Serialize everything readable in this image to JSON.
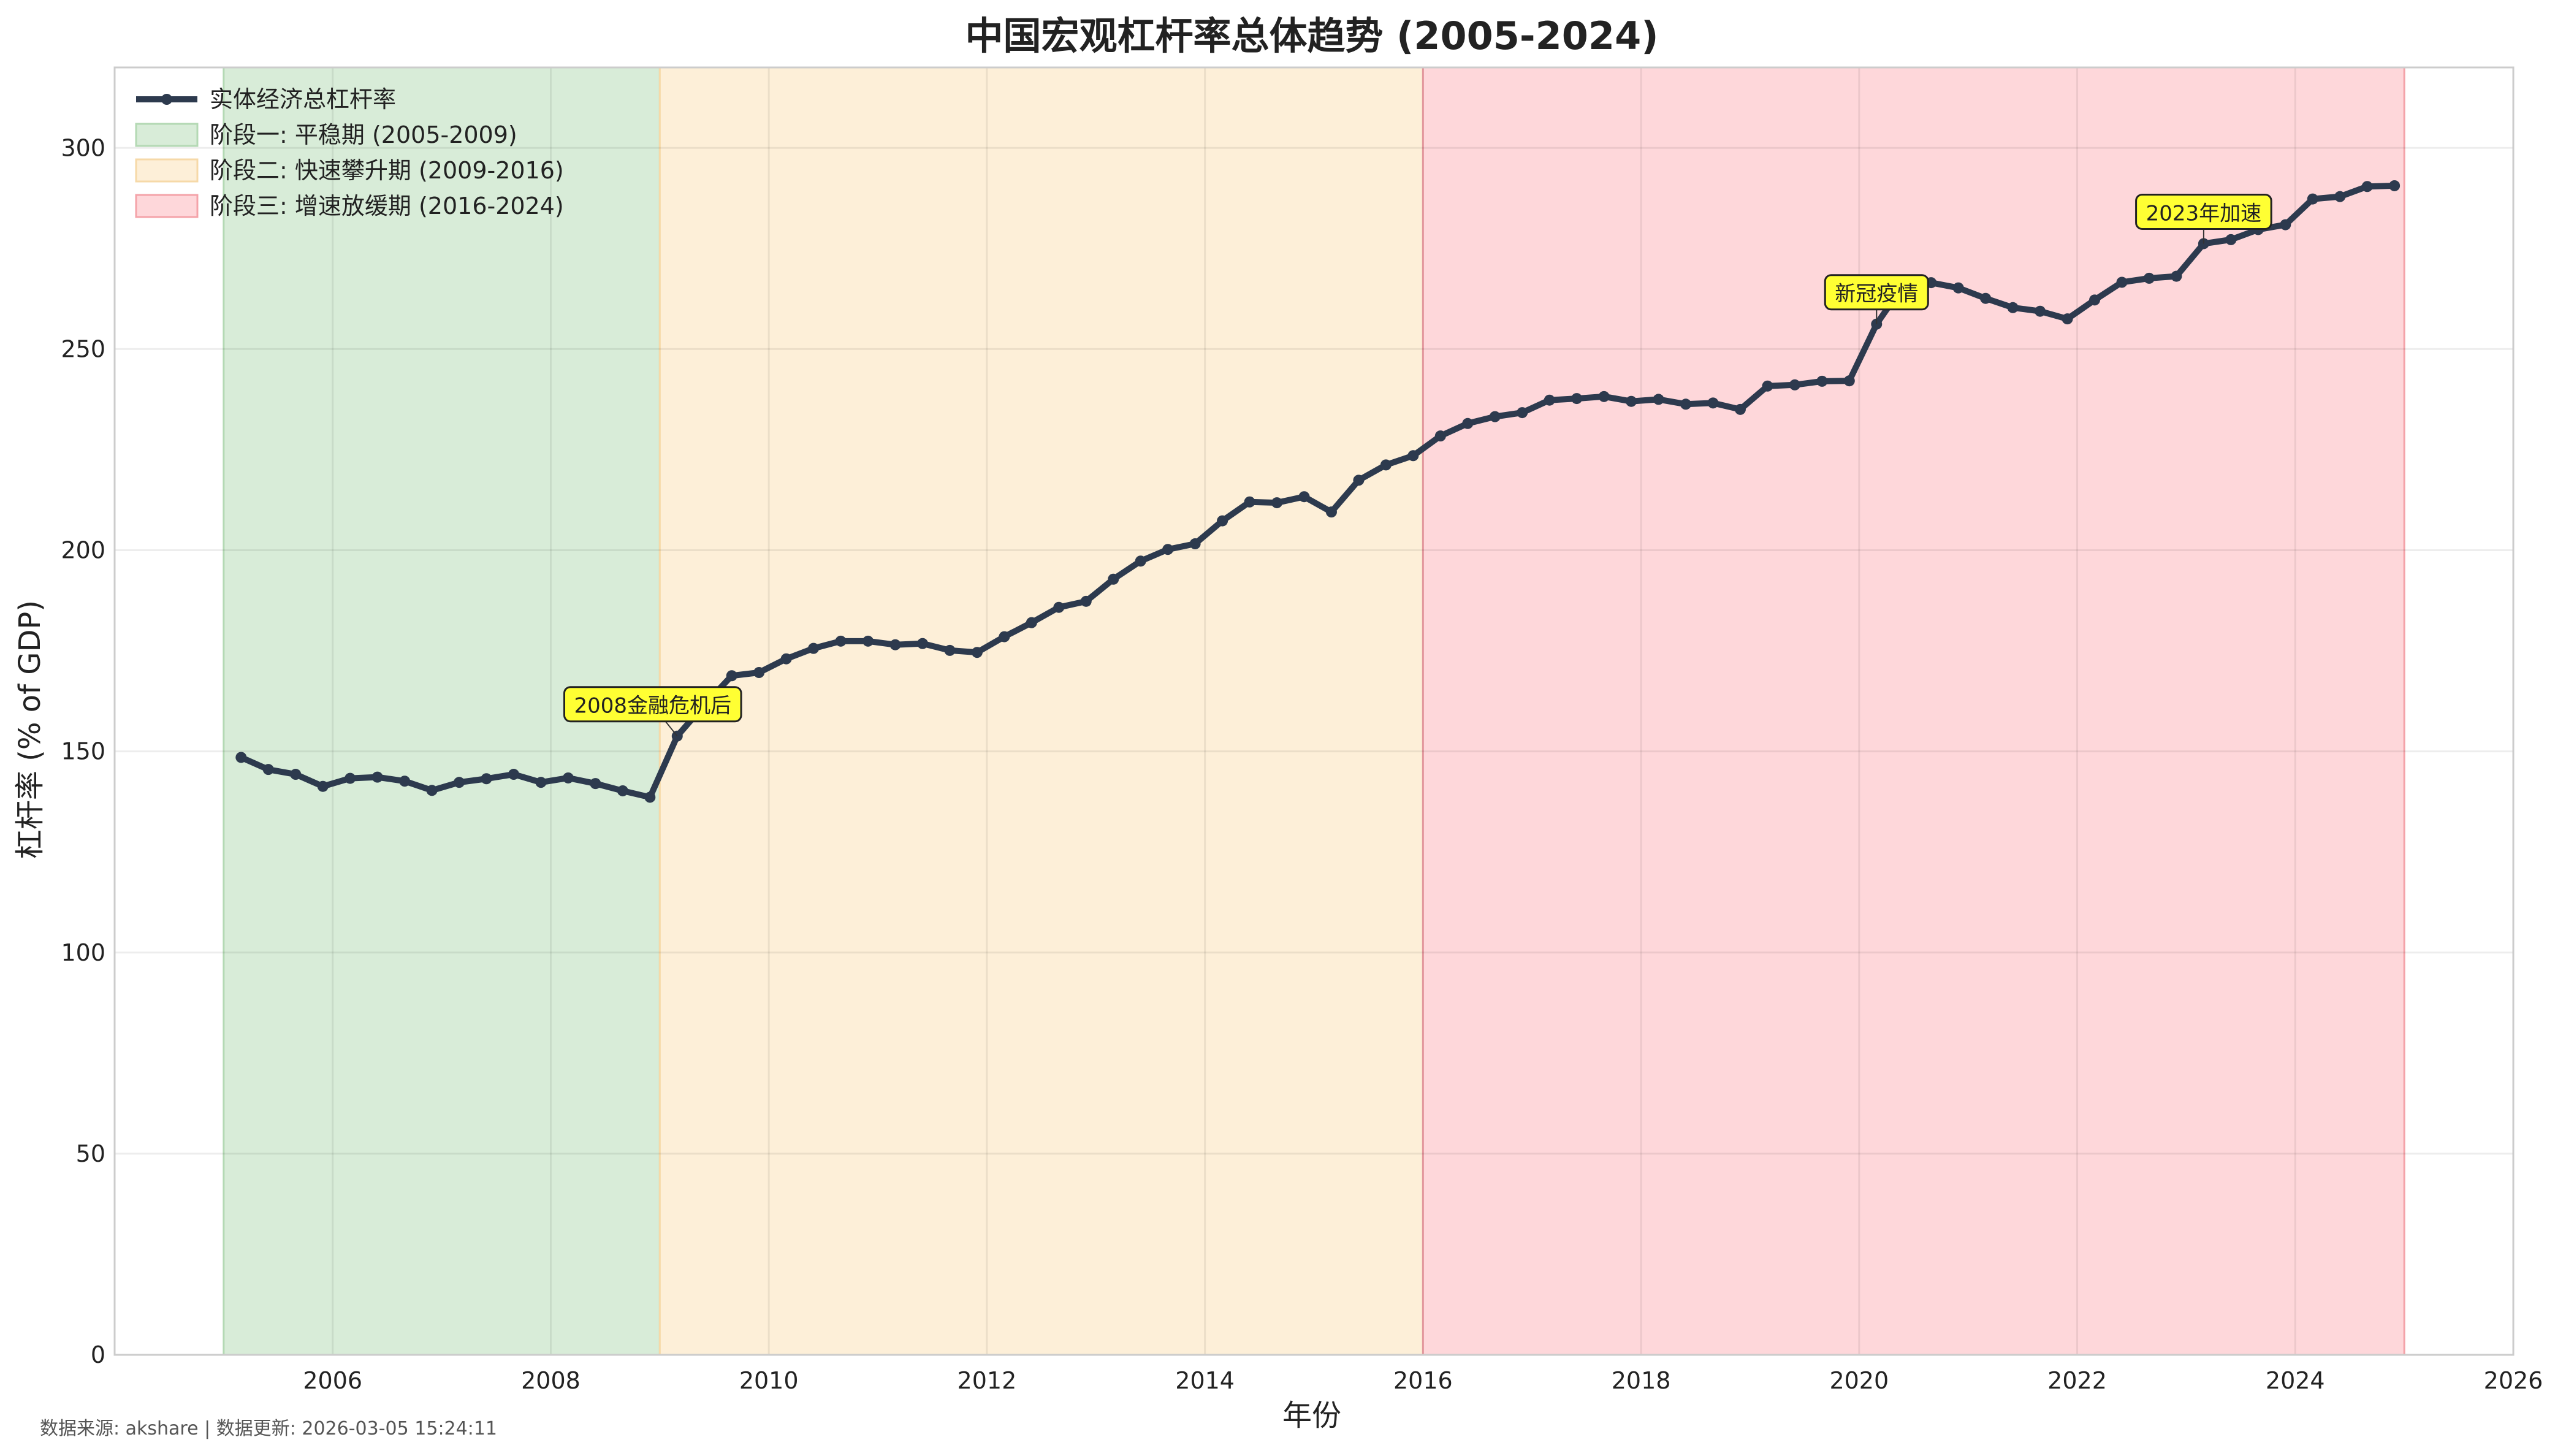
{
  "chart_data": {
    "type": "line",
    "title": "中国宏观杠杆率总体趋势 (2005-2024)",
    "xlabel": "年份",
    "ylabel": "杠杆率 (% of GDP)",
    "xlim": [
      2004.0,
      2026.0
    ],
    "ylim": [
      0,
      320
    ],
    "xticks": [
      2006,
      2008,
      2010,
      2012,
      2014,
      2016,
      2018,
      2020,
      2022,
      2024,
      2026
    ],
    "yticks": [
      0,
      50,
      100,
      150,
      200,
      250,
      300
    ],
    "grid": true,
    "legend_position": "top-left",
    "series": [
      {
        "name": "实体经济总杠杆率",
        "color": "#2d3a4e",
        "x": [
          2005.16,
          2005.41,
          2005.66,
          2005.91,
          2006.16,
          2006.41,
          2006.66,
          2006.91,
          2007.16,
          2007.41,
          2007.66,
          2007.91,
          2008.16,
          2008.41,
          2008.66,
          2008.91,
          2009.16,
          2009.41,
          2009.66,
          2009.91,
          2010.16,
          2010.41,
          2010.66,
          2010.91,
          2011.16,
          2011.41,
          2011.66,
          2011.91,
          2012.16,
          2012.41,
          2012.66,
          2012.91,
          2013.16,
          2013.41,
          2013.66,
          2013.91,
          2014.16,
          2014.41,
          2014.66,
          2014.91,
          2015.16,
          2015.41,
          2015.66,
          2015.91,
          2016.16,
          2016.41,
          2016.66,
          2016.91,
          2017.16,
          2017.41,
          2017.66,
          2017.91,
          2018.16,
          2018.41,
          2018.66,
          2018.91,
          2019.16,
          2019.41,
          2019.66,
          2019.91,
          2020.16,
          2020.41,
          2020.66,
          2020.91,
          2021.16,
          2021.41,
          2021.66,
          2021.91,
          2022.16,
          2022.41,
          2022.66,
          2022.91,
          2023.16,
          2023.41,
          2023.66,
          2023.91,
          2024.16,
          2024.41,
          2024.66,
          2024.91
        ],
        "y": [
          148.5,
          145.5,
          144.3,
          141.3,
          143.3,
          143.6,
          142.6,
          140.3,
          142.3,
          143.2,
          144.3,
          142.3,
          143.4,
          142.0,
          140.2,
          138.6,
          153.8,
          161.6,
          168.8,
          169.6,
          173.0,
          175.6,
          177.4,
          177.4,
          176.5,
          176.8,
          175.1,
          174.6,
          178.5,
          182.0,
          185.8,
          187.3,
          192.8,
          197.3,
          200.2,
          201.6,
          207.3,
          212.0,
          211.8,
          213.3,
          209.5,
          217.4,
          221.2,
          223.5,
          228.4,
          231.5,
          233.2,
          234.2,
          237.3,
          237.7,
          238.2,
          237.0,
          237.5,
          236.3,
          236.6,
          235.0,
          240.8,
          241.1,
          242.0,
          242.1,
          256.2,
          266.0,
          266.5,
          265.2,
          262.6,
          260.3,
          259.4,
          257.5,
          262.2,
          266.6,
          267.6,
          268.1,
          276.2,
          277.2,
          279.7,
          280.9,
          287.3,
          287.9,
          290.4,
          290.6
        ]
      }
    ],
    "phases": [
      {
        "name": "阶段一: 平稳期 (2005-2009)",
        "start": 2005.0,
        "end": 2009.0,
        "color": "#d8ecd8",
        "edge": "#b4d9b4"
      },
      {
        "name": "阶段二: 快速攀升期 (2009-2016)",
        "start": 2009.0,
        "end": 2016.0,
        "color": "#fdefd8",
        "edge": "#f6d9a8"
      },
      {
        "name": "阶段三: 增速放缓期 (2016-2024)",
        "start": 2016.0,
        "end": 2025.0,
        "color": "#fed7da",
        "edge": "#f4a3a9"
      }
    ],
    "annotations": [
      {
        "text": "2008金融危机后",
        "x": 2009.16,
        "y": 153.8
      },
      {
        "text": "新冠疫情",
        "x": 2020.16,
        "y": 256.2
      },
      {
        "text": "2023年加速",
        "x": 2023.16,
        "y": 276.2
      }
    ],
    "annotation_box_color": "#ffff33"
  },
  "footer": {
    "text": "数据来源: akshare | 数据更新: 2026-03-05 15:24:11"
  }
}
